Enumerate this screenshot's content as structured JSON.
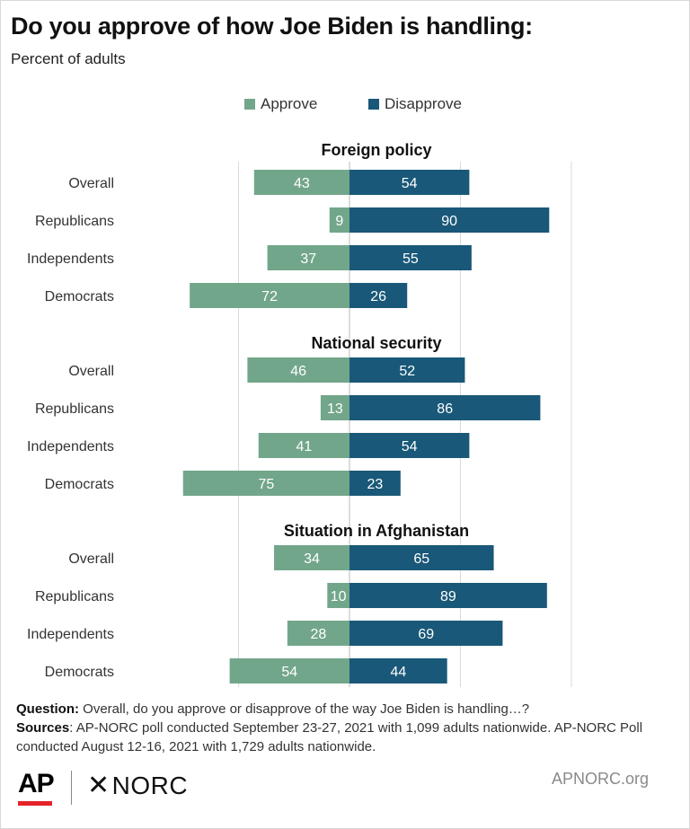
{
  "title": "Do you approve of how Joe Biden is handling:",
  "subtitle": "Percent of adults",
  "colors": {
    "approve": "#72a68a",
    "disapprove": "#195878",
    "grid": "#d9d9d9"
  },
  "footer": {
    "question_label": "Question:",
    "question_text": " Overall, do you approve or disapprove of the way Joe Biden is handling…?",
    "sources_label": "Sources",
    "sources_text": ": AP-NORC poll conducted September 23-27, 2021 with 1,099 adults nationwide. AP-NORC Poll conducted August 12-16, 2021 with 1,729 adults nationwide."
  },
  "logos": {
    "ap": "AP",
    "norc": "NORC",
    "site": "APNORC.org"
  },
  "chart_data": {
    "type": "bar",
    "orientation": "horizontal-diverging",
    "legend": [
      "Approve",
      "Disapprove"
    ],
    "legend_position": "top",
    "grid": true,
    "xlim": [
      -100,
      100
    ],
    "groups": [
      {
        "title": "Foreign policy",
        "categories": [
          "Overall",
          "Republicans",
          "Independents",
          "Democrats"
        ],
        "series": [
          {
            "name": "Approve",
            "values": [
              43,
              9,
              37,
              72
            ]
          },
          {
            "name": "Disapprove",
            "values": [
              54,
              90,
              55,
              26
            ]
          }
        ]
      },
      {
        "title": "National security",
        "categories": [
          "Overall",
          "Republicans",
          "Independents",
          "Democrats"
        ],
        "series": [
          {
            "name": "Approve",
            "values": [
              46,
              13,
              41,
              75
            ]
          },
          {
            "name": "Disapprove",
            "values": [
              52,
              86,
              54,
              23
            ]
          }
        ]
      },
      {
        "title": "Situation in Afghanistan",
        "categories": [
          "Overall",
          "Republicans",
          "Independents",
          "Democrats"
        ],
        "series": [
          {
            "name": "Approve",
            "values": [
              34,
              10,
              28,
              54
            ]
          },
          {
            "name": "Disapprove",
            "values": [
              65,
              89,
              69,
              44
            ]
          }
        ]
      }
    ]
  }
}
